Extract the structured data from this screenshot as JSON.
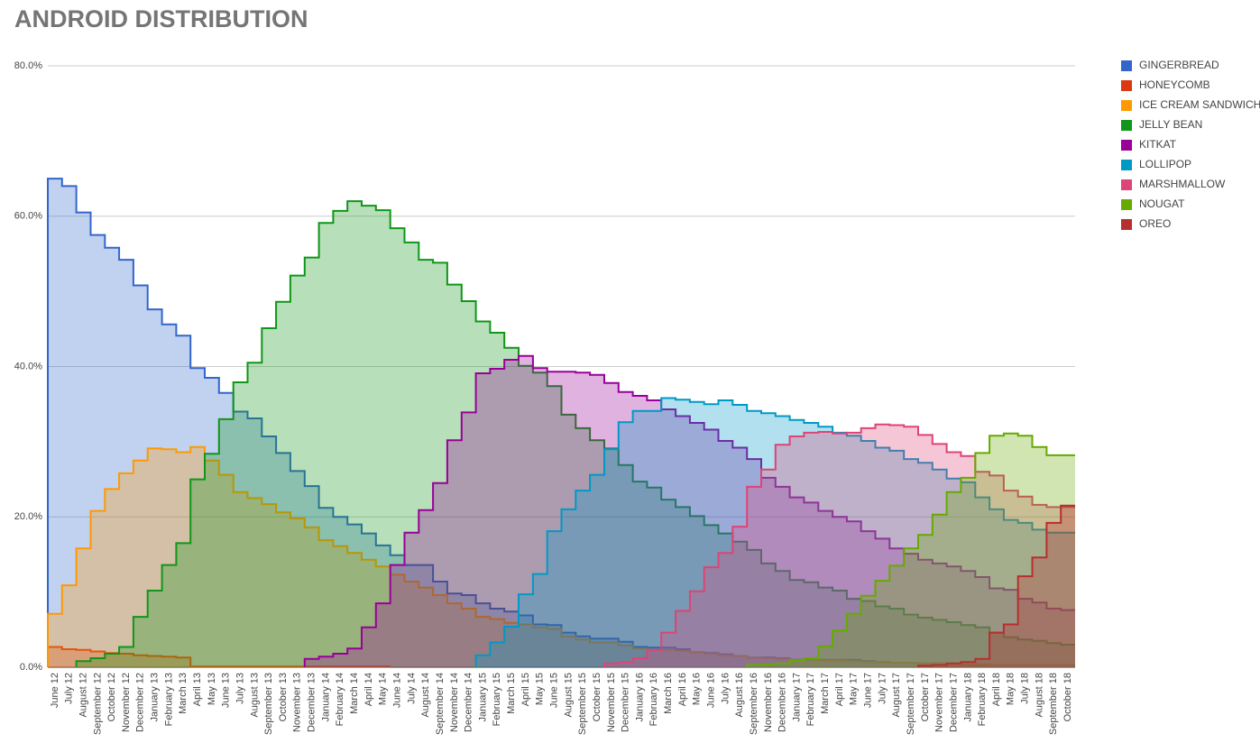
{
  "chart_data": {
    "type": "step-area",
    "title": "ANDROID DISTRIBUTION",
    "categories": [
      "June 12",
      "July 12",
      "August 12",
      "September 12",
      "October 12",
      "November 12",
      "December 12",
      "January 13",
      "February 13",
      "March 13",
      "April 13",
      "May 13",
      "June 13",
      "July 13",
      "August 13",
      "September 13",
      "October 13",
      "November 13",
      "December 13",
      "January 14",
      "February 14",
      "March 14",
      "April 14",
      "May 14",
      "June 14",
      "July 14",
      "August 14",
      "September 14",
      "November 14",
      "December 14",
      "January 15",
      "February 15",
      "March 15",
      "April 15",
      "May 15",
      "June 15",
      "August 15",
      "September 15",
      "October 15",
      "November 15",
      "December 15",
      "January 16",
      "February 16",
      "March 16",
      "April 16",
      "May 16",
      "June 16",
      "July 16",
      "August 16",
      "September 16",
      "November 16",
      "December 16",
      "January 17",
      "February 17",
      "March 17",
      "April 17",
      "May 17",
      "June 17",
      "July 17",
      "August 17",
      "September 17",
      "October 17",
      "November 17",
      "December 17",
      "January 18",
      "February 18",
      "April 18",
      "May 18",
      "July 18",
      "August 18",
      "September 18",
      "October 18"
    ],
    "ylim": [
      0,
      80
    ],
    "yticks": [
      {
        "value": 0,
        "label": "0.0%"
      },
      {
        "value": 20,
        "label": "20.0%"
      },
      {
        "value": 40,
        "label": "40.0%"
      },
      {
        "value": 60,
        "label": "60.0%"
      },
      {
        "value": 80,
        "label": "80.0%"
      }
    ],
    "grid": true,
    "legend": "right",
    "series": [
      {
        "name": "GINGERBREAD",
        "color": "#3366cc",
        "values": [
          65.0,
          64.0,
          60.5,
          57.5,
          55.8,
          54.2,
          50.8,
          47.6,
          45.6,
          44.1,
          39.8,
          38.5,
          36.5,
          34.0,
          33.1,
          30.7,
          28.5,
          26.1,
          24.1,
          21.2,
          20.0,
          19.0,
          17.8,
          16.2,
          14.9,
          13.6,
          13.6,
          11.4,
          9.8,
          9.6,
          8.5,
          7.8,
          7.4,
          6.9,
          5.7,
          5.6,
          4.6,
          4.1,
          3.8,
          3.8,
          3.4,
          2.7,
          2.6,
          2.6,
          2.4,
          2.0,
          1.9,
          1.7,
          1.5,
          1.3,
          1.3,
          1.2,
          1.0,
          1.0,
          1.0,
          1.0,
          1.0,
          0.8,
          0.7,
          0.6,
          0.6,
          0.5,
          0.5,
          0.4,
          0.3,
          0.3,
          0.3,
          0.3,
          0.3,
          0.3,
          0.3,
          0.3
        ]
      },
      {
        "name": "HONEYCOMB",
        "color": "#dc3912",
        "values": [
          2.7,
          2.4,
          2.3,
          2.1,
          1.9,
          1.8,
          1.6,
          1.5,
          1.4,
          1.3,
          0.1,
          0.1,
          0.1,
          0.1,
          0.1,
          0.1,
          0.1,
          0.1,
          0.1,
          0.1,
          0.1,
          0.1,
          0.1,
          0.1,
          null,
          null,
          null,
          null,
          null,
          null,
          null,
          null,
          null,
          null,
          null,
          null,
          null,
          null,
          null,
          null,
          null,
          null,
          null,
          null,
          null,
          null,
          null,
          null,
          null,
          null,
          null,
          null,
          null,
          null,
          null,
          null,
          null,
          null,
          null,
          null,
          null,
          null,
          null,
          null,
          null,
          null,
          null,
          null,
          null,
          null,
          null,
          null
        ]
      },
      {
        "name": "ICE CREAM SANDWICH",
        "color": "#ff9900",
        "values": [
          7.1,
          10.9,
          15.8,
          20.8,
          23.7,
          25.8,
          27.5,
          29.1,
          29.0,
          28.6,
          29.3,
          27.5,
          25.6,
          23.3,
          22.5,
          21.7,
          20.6,
          19.8,
          18.6,
          16.9,
          16.1,
          15.2,
          14.3,
          13.4,
          12.3,
          11.4,
          10.6,
          9.6,
          8.5,
          7.8,
          6.7,
          6.4,
          5.9,
          5.7,
          5.3,
          5.1,
          4.1,
          3.7,
          3.3,
          3.3,
          2.9,
          2.5,
          2.3,
          2.3,
          2.2,
          2.0,
          1.8,
          1.6,
          1.5,
          1.3,
          1.2,
          1.1,
          1.0,
          1.0,
          0.9,
          0.9,
          0.8,
          0.7,
          0.7,
          0.6,
          0.6,
          0.5,
          0.5,
          0.4,
          0.4,
          0.4,
          0.3,
          0.3,
          0.3,
          0.3,
          0.3,
          0.3
        ]
      },
      {
        "name": "JELLY BEAN",
        "color": "#109618",
        "values": [
          null,
          null,
          0.8,
          1.2,
          1.8,
          2.7,
          6.7,
          10.2,
          13.6,
          16.5,
          25.0,
          28.4,
          33.0,
          37.9,
          40.5,
          45.1,
          48.6,
          52.1,
          54.5,
          59.1,
          60.7,
          62.0,
          61.4,
          60.8,
          58.4,
          56.5,
          54.2,
          53.8,
          50.9,
          48.7,
          46.0,
          44.5,
          42.5,
          40.1,
          39.2,
          37.4,
          33.6,
          31.8,
          30.2,
          29.1,
          26.9,
          24.7,
          23.9,
          22.3,
          21.3,
          20.1,
          18.9,
          17.8,
          16.7,
          15.6,
          13.8,
          12.8,
          11.6,
          11.3,
          10.6,
          10.2,
          9.1,
          8.8,
          8.1,
          7.8,
          7.0,
          6.6,
          6.3,
          6.0,
          5.6,
          5.3,
          4.6,
          4.0,
          3.7,
          3.5,
          3.2,
          3.0
        ]
      },
      {
        "name": "KITKAT",
        "color": "#990099",
        "values": [
          null,
          null,
          null,
          null,
          null,
          null,
          null,
          null,
          null,
          null,
          null,
          null,
          null,
          null,
          null,
          null,
          null,
          null,
          1.1,
          1.4,
          1.8,
          2.5,
          5.3,
          8.5,
          13.6,
          17.9,
          20.9,
          24.5,
          30.2,
          33.9,
          39.1,
          39.7,
          40.9,
          41.4,
          39.8,
          39.3,
          39.3,
          39.2,
          38.9,
          37.8,
          36.6,
          36.1,
          35.5,
          34.3,
          33.4,
          32.5,
          31.6,
          30.1,
          29.2,
          27.7,
          25.2,
          24.0,
          22.6,
          21.9,
          20.8,
          20.0,
          19.4,
          18.1,
          17.1,
          15.8,
          15.1,
          14.3,
          13.8,
          13.4,
          12.8,
          12.0,
          10.5,
          10.3,
          9.1,
          8.6,
          7.8,
          7.6
        ]
      },
      {
        "name": "LOLLIPOP",
        "color": "#0099c6",
        "values": [
          null,
          null,
          null,
          null,
          null,
          null,
          null,
          null,
          null,
          null,
          null,
          null,
          null,
          null,
          null,
          null,
          null,
          null,
          null,
          null,
          null,
          null,
          null,
          null,
          null,
          null,
          null,
          null,
          null,
          null,
          1.6,
          3.3,
          5.4,
          9.7,
          12.4,
          18.1,
          21.0,
          23.5,
          25.6,
          29.0,
          32.6,
          34.1,
          34.1,
          35.8,
          35.6,
          35.3,
          35.0,
          35.5,
          34.9,
          34.1,
          33.8,
          33.4,
          32.9,
          32.5,
          32.0,
          31.2,
          30.8,
          30.1,
          29.2,
          28.8,
          27.7,
          27.2,
          26.3,
          25.1,
          24.6,
          22.6,
          21.0,
          19.6,
          19.2,
          18.3,
          17.9,
          17.9
        ]
      },
      {
        "name": "MARSHMALLOW",
        "color": "#dd4477",
        "values": [
          null,
          null,
          null,
          null,
          null,
          null,
          null,
          null,
          null,
          null,
          null,
          null,
          null,
          null,
          null,
          null,
          null,
          null,
          null,
          null,
          null,
          null,
          null,
          null,
          null,
          null,
          null,
          null,
          null,
          null,
          null,
          null,
          null,
          null,
          null,
          null,
          null,
          null,
          null,
          0.5,
          0.7,
          1.2,
          2.3,
          4.6,
          7.5,
          10.1,
          13.3,
          15.2,
          18.7,
          24.0,
          26.3,
          29.6,
          30.7,
          31.2,
          31.3,
          31.1,
          31.2,
          31.8,
          32.3,
          32.2,
          32.0,
          30.9,
          29.7,
          28.6,
          28.1,
          26.0,
          25.5,
          23.5,
          22.7,
          21.6,
          21.3,
          21.3
        ]
      },
      {
        "name": "NOUGAT",
        "color": "#66aa00",
        "values": [
          null,
          null,
          null,
          null,
          null,
          null,
          null,
          null,
          null,
          null,
          null,
          null,
          null,
          null,
          null,
          null,
          null,
          null,
          null,
          null,
          null,
          null,
          null,
          null,
          null,
          null,
          null,
          null,
          null,
          null,
          null,
          null,
          null,
          null,
          null,
          null,
          null,
          null,
          null,
          null,
          null,
          null,
          null,
          null,
          null,
          null,
          null,
          null,
          null,
          0.3,
          0.4,
          0.5,
          0.9,
          1.2,
          2.8,
          4.9,
          7.1,
          9.5,
          11.5,
          13.5,
          15.8,
          17.6,
          20.3,
          23.3,
          25.2,
          28.5,
          30.8,
          31.1,
          30.8,
          29.3,
          28.2,
          28.2
        ]
      },
      {
        "name": "OREO",
        "color": "#b82e2e",
        "values": [
          null,
          null,
          null,
          null,
          null,
          null,
          null,
          null,
          null,
          null,
          null,
          null,
          null,
          null,
          null,
          null,
          null,
          null,
          null,
          null,
          null,
          null,
          null,
          null,
          null,
          null,
          null,
          null,
          null,
          null,
          null,
          null,
          null,
          null,
          null,
          null,
          null,
          null,
          null,
          null,
          null,
          null,
          null,
          null,
          null,
          null,
          null,
          null,
          null,
          null,
          null,
          null,
          null,
          null,
          null,
          null,
          null,
          null,
          null,
          null,
          null,
          0.2,
          0.3,
          0.5,
          0.7,
          1.1,
          4.6,
          5.7,
          12.1,
          14.6,
          19.2,
          21.5
        ]
      }
    ]
  }
}
